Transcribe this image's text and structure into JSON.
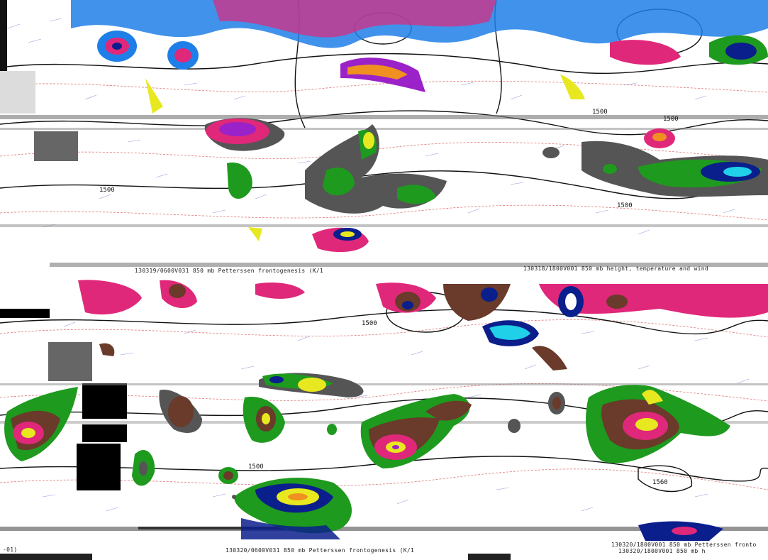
{
  "panels": [
    {
      "id": "top",
      "captions": [
        "130319/0600V031  850 mb Petterssen frontogenesis (K/1",
        "130318/1800V001  850 mb height, temperature and wind"
      ],
      "contour_labels": [
        "1500",
        "1500",
        "1500",
        "1500"
      ]
    },
    {
      "id": "bottom",
      "captions": [
        "130320/0600V031  850 mb Petterssen frontogenesis (K/1",
        "130320/1800V001  850 mb Petterssen fronto",
        "130320/1800V001  850 mb h",
        "-01)"
      ],
      "contour_labels": [
        "1500",
        "1560",
        "1500"
      ]
    }
  ],
  "colors": {
    "blue": "#1f7fe8",
    "navy": "#0a1e8c",
    "magenta": "#e0287a",
    "purple": "#9a22c8",
    "green": "#1e9a1e",
    "yellow": "#e8e820",
    "orange": "#f09020",
    "brown": "#6a3a2a",
    "grey": "#555555",
    "cyan": "#20d0e8",
    "contour": "#111111",
    "isotherm": "#d03030",
    "wind": "#3030c0"
  }
}
